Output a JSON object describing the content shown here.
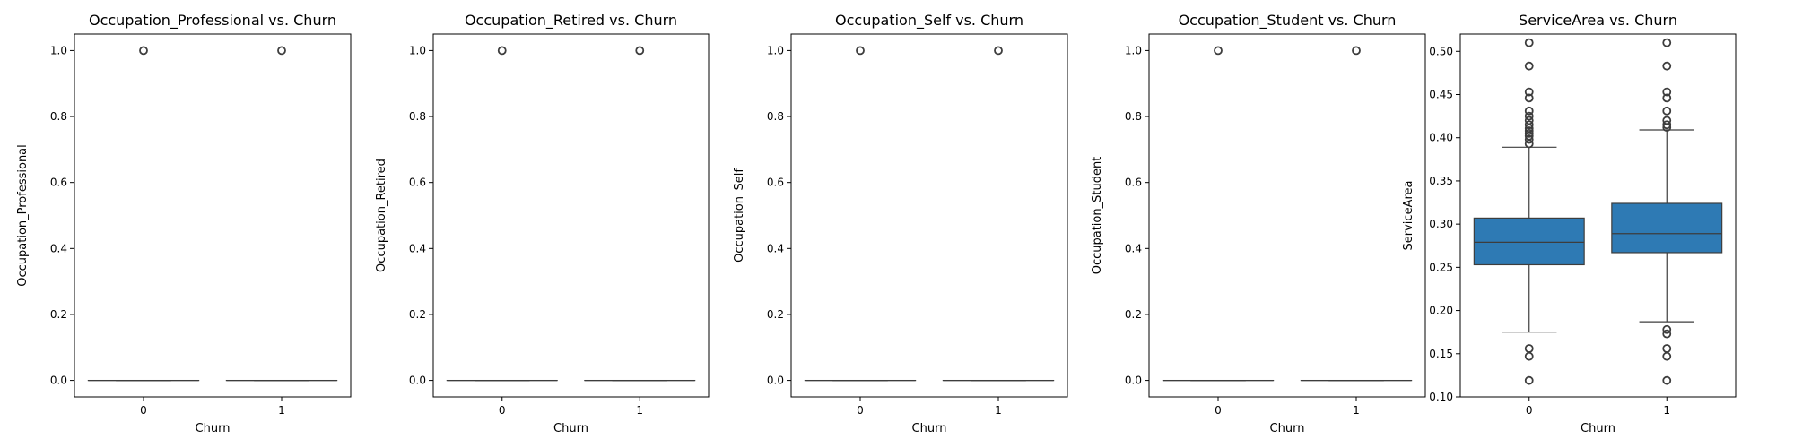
{
  "colors": {
    "box_fill": "#2e7ab4",
    "box_line": "#3d3d3d"
  },
  "chart_data": [
    {
      "type": "boxplot",
      "title": "Occupation_Professional vs. Churn",
      "xlabel": "Churn",
      "ylabel": "Occupation_Professional",
      "categories": [
        "0",
        "1"
      ],
      "ylim": [
        -0.05,
        1.05
      ],
      "yticks": [
        0.0,
        0.2,
        0.4,
        0.6,
        0.8,
        1.0
      ],
      "ytick_labels": [
        "0.0",
        "0.2",
        "0.4",
        "0.6",
        "0.8",
        "1.0"
      ],
      "boxes": [
        {
          "q1": 0,
          "median": 0,
          "q3": 0,
          "whislo": 0,
          "whishi": 0,
          "fliers": [
            1.0
          ]
        },
        {
          "q1": 0,
          "median": 0,
          "q3": 0,
          "whislo": 0,
          "whishi": 0,
          "fliers": [
            1.0
          ]
        }
      ]
    },
    {
      "type": "boxplot",
      "title": "Occupation_Retired vs. Churn",
      "xlabel": "Churn",
      "ylabel": "Occupation_Retired",
      "categories": [
        "0",
        "1"
      ],
      "ylim": [
        -0.05,
        1.05
      ],
      "yticks": [
        0.0,
        0.2,
        0.4,
        0.6,
        0.8,
        1.0
      ],
      "ytick_labels": [
        "0.0",
        "0.2",
        "0.4",
        "0.6",
        "0.8",
        "1.0"
      ],
      "boxes": [
        {
          "q1": 0,
          "median": 0,
          "q3": 0,
          "whislo": 0,
          "whishi": 0,
          "fliers": [
            1.0
          ]
        },
        {
          "q1": 0,
          "median": 0,
          "q3": 0,
          "whislo": 0,
          "whishi": 0,
          "fliers": [
            1.0
          ]
        }
      ]
    },
    {
      "type": "boxplot",
      "title": "Occupation_Self vs. Churn",
      "xlabel": "Churn",
      "ylabel": "Occupation_Self",
      "categories": [
        "0",
        "1"
      ],
      "ylim": [
        -0.05,
        1.05
      ],
      "yticks": [
        0.0,
        0.2,
        0.4,
        0.6,
        0.8,
        1.0
      ],
      "ytick_labels": [
        "0.0",
        "0.2",
        "0.4",
        "0.6",
        "0.8",
        "1.0"
      ],
      "boxes": [
        {
          "q1": 0,
          "median": 0,
          "q3": 0,
          "whislo": 0,
          "whishi": 0,
          "fliers": [
            1.0
          ]
        },
        {
          "q1": 0,
          "median": 0,
          "q3": 0,
          "whislo": 0,
          "whishi": 0,
          "fliers": [
            1.0
          ]
        }
      ]
    },
    {
      "type": "boxplot",
      "title": "Occupation_Student vs. Churn",
      "xlabel": "Churn",
      "ylabel": "Occupation_Student",
      "categories": [
        "0",
        "1"
      ],
      "ylim": [
        -0.05,
        1.05
      ],
      "yticks": [
        0.0,
        0.2,
        0.4,
        0.6,
        0.8,
        1.0
      ],
      "ytick_labels": [
        "0.0",
        "0.2",
        "0.4",
        "0.6",
        "0.8",
        "1.0"
      ],
      "boxes": [
        {
          "q1": 0,
          "median": 0,
          "q3": 0,
          "whislo": 0,
          "whishi": 0,
          "fliers": [
            1.0
          ]
        },
        {
          "q1": 0,
          "median": 0,
          "q3": 0,
          "whislo": 0,
          "whishi": 0,
          "fliers": [
            1.0
          ]
        }
      ]
    },
    {
      "type": "boxplot",
      "title": "ServiceArea vs. Churn",
      "xlabel": "Churn",
      "ylabel": "ServiceArea",
      "categories": [
        "0",
        "1"
      ],
      "ylim": [
        0.1,
        0.52
      ],
      "yticks": [
        0.1,
        0.15,
        0.2,
        0.25,
        0.3,
        0.35,
        0.4,
        0.45,
        0.5
      ],
      "ytick_labels": [
        "0.10",
        "0.15",
        "0.20",
        "0.25",
        "0.30",
        "0.35",
        "0.40",
        "0.45",
        "0.50"
      ],
      "boxes": [
        {
          "q1": 0.253,
          "median": 0.279,
          "q3": 0.307,
          "whislo": 0.175,
          "whishi": 0.389,
          "fliers": [
            0.119,
            0.147,
            0.156,
            0.393,
            0.398,
            0.402,
            0.405,
            0.408,
            0.411,
            0.415,
            0.42,
            0.425,
            0.431,
            0.446,
            0.453,
            0.483,
            0.51
          ]
        },
        {
          "q1": 0.267,
          "median": 0.289,
          "q3": 0.324,
          "whislo": 0.187,
          "whishi": 0.409,
          "fliers": [
            0.119,
            0.147,
            0.156,
            0.173,
            0.178,
            0.412,
            0.415,
            0.42,
            0.431,
            0.446,
            0.453,
            0.483,
            0.51
          ]
        }
      ]
    }
  ]
}
